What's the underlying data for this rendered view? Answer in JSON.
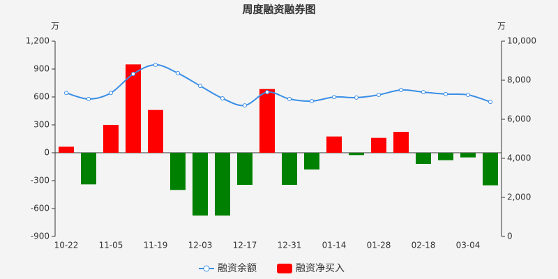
{
  "chart_data": {
    "type": "bar",
    "title": "周度融资融券图",
    "y_unit": "万",
    "y2_unit": "万",
    "categories": [
      "10-22",
      null,
      "11-05",
      null,
      "11-19",
      null,
      "12-03",
      null,
      "12-17",
      null,
      "12-31",
      null,
      "01-14",
      null,
      "01-28",
      null,
      "02-18",
      null,
      "03-04",
      null
    ],
    "series": [
      {
        "name": "融资余额",
        "type": "line",
        "axis": "y2",
        "color": "#3a8ee6",
        "values": [
          7350,
          7040,
          7350,
          8320,
          8790,
          8360,
          7710,
          7070,
          6710,
          7390,
          7040,
          6930,
          7140,
          7110,
          7250,
          7500,
          7390,
          7290,
          7250,
          6890
        ]
      },
      {
        "name": "融资净买入",
        "type": "bar",
        "color": "#ff0000",
        "negative_color": "#008000",
        "values": [
          65,
          -340,
          300,
          950,
          460,
          -400,
          -675,
          -675,
          -345,
          685,
          -345,
          -180,
          175,
          -25,
          160,
          225,
          -120,
          -80,
          -50,
          -350
        ]
      }
    ],
    "ylim": [
      -900,
      1200
    ],
    "yticks": [
      -900,
      -600,
      -300,
      0,
      300,
      600,
      900,
      {
        "value": 1200,
        "label": "1,200"
      }
    ],
    "y2lim": [
      0,
      10000
    ],
    "y2ticks": [
      0,
      {
        "value": 2000,
        "label": "2,000"
      },
      {
        "value": 4000,
        "label": "4,000"
      },
      {
        "value": 6000,
        "label": "6,000"
      },
      {
        "value": 8000,
        "label": "8,000"
      },
      {
        "value": 10000,
        "label": "10,000"
      }
    ]
  }
}
